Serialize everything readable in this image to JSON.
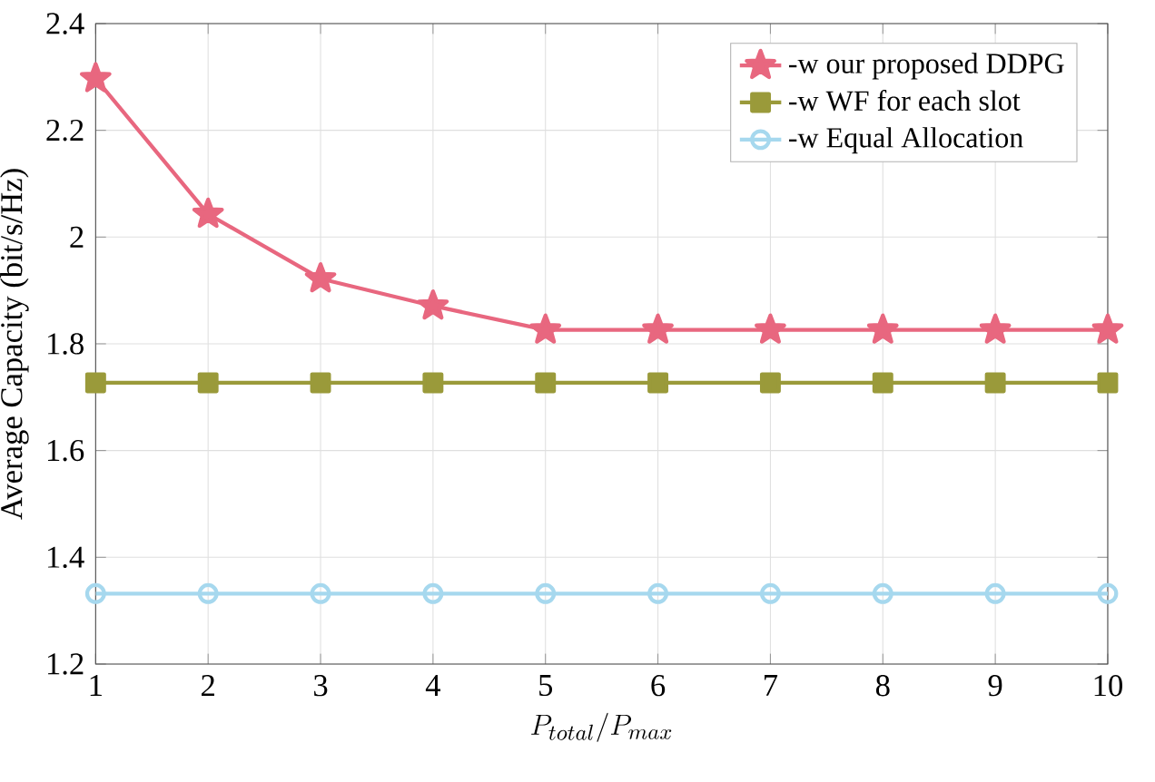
{
  "chart_data": {
    "type": "line",
    "xlabel": "P_{total}/P_{max}",
    "ylabel": "Average Capacity (bit/s/Hz)",
    "x": [
      1,
      2,
      3,
      4,
      5,
      6,
      7,
      8,
      9,
      10
    ],
    "series": [
      {
        "name": "-w our proposed DDPG",
        "color": "#e8677f",
        "marker": "star",
        "values": [
          2.297,
          2.043,
          1.922,
          1.871,
          1.826,
          1.826,
          1.826,
          1.826,
          1.826,
          1.826
        ]
      },
      {
        "name": "-w WF for each slot",
        "color": "#9a9a3a",
        "marker": "square",
        "values": [
          1.727,
          1.727,
          1.727,
          1.727,
          1.727,
          1.727,
          1.727,
          1.727,
          1.727,
          1.727
        ]
      },
      {
        "name": "-w Equal Allocation",
        "color": "#a6d8ee",
        "marker": "circle",
        "values": [
          1.332,
          1.332,
          1.332,
          1.332,
          1.332,
          1.332,
          1.332,
          1.332,
          1.332,
          1.332
        ]
      }
    ],
    "xlim": [
      1,
      10
    ],
    "xticks": [
      1,
      2,
      3,
      4,
      5,
      6,
      7,
      8,
      9,
      10
    ],
    "ylim": [
      1.2,
      2.4
    ],
    "yticks": [
      1.2,
      1.4,
      1.6,
      1.8,
      2,
      2.2,
      2.4
    ],
    "grid": true,
    "legend": "top right",
    "line_style": "solid"
  }
}
